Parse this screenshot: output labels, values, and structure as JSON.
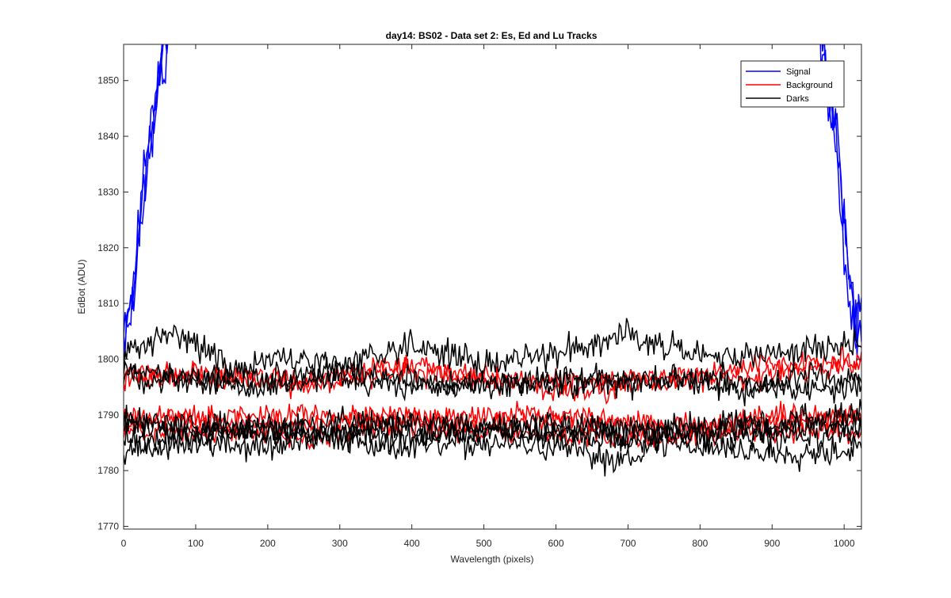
{
  "chart_data": {
    "type": "line",
    "title": "day14: BS02 - Data set 2: Es, Ed and Lu Tracks",
    "xlabel": "Wavelength (pixels)",
    "ylabel": "EdBot (ADU)",
    "xlim": [
      0,
      1024
    ],
    "ylim": [
      1769.5,
      1856.5
    ],
    "xticks": [
      0,
      100,
      200,
      300,
      400,
      500,
      600,
      700,
      800,
      900,
      1000
    ],
    "yticks": [
      1770,
      1780,
      1790,
      1800,
      1810,
      1820,
      1830,
      1840,
      1850
    ],
    "grid": false,
    "legend": {
      "location": "top-right",
      "entries": [
        {
          "label": "Signal",
          "color": "#0000ff"
        },
        {
          "label": "Background",
          "color": "#ff0000"
        },
        {
          "label": "Darks",
          "color": "#000000"
        }
      ]
    },
    "series": [
      {
        "group": "Signal",
        "color": "#0000ff",
        "noise": 2.4,
        "seed": 11,
        "points": [
          [
            0,
            1807
          ],
          [
            10,
            1811
          ],
          [
            20,
            1822
          ],
          [
            30,
            1836
          ],
          [
            40,
            1846
          ],
          [
            50,
            1852
          ],
          [
            60,
            1860
          ],
          [
            70,
            1870
          ],
          [
            955,
            1870
          ],
          [
            975,
            1852
          ],
          [
            990,
            1840
          ],
          [
            1000,
            1825
          ],
          [
            1010,
            1812
          ],
          [
            1017,
            1807
          ],
          [
            1024,
            1810
          ]
        ]
      },
      {
        "group": "Signal",
        "color": "#0000ff",
        "noise": 2.6,
        "seed": 12,
        "points": [
          [
            0,
            1803
          ],
          [
            10,
            1808
          ],
          [
            20,
            1818
          ],
          [
            30,
            1832
          ],
          [
            40,
            1842
          ],
          [
            50,
            1851
          ],
          [
            60,
            1858
          ],
          [
            70,
            1870
          ],
          [
            955,
            1870
          ],
          [
            975,
            1849
          ],
          [
            990,
            1835
          ],
          [
            1000,
            1820
          ],
          [
            1010,
            1808
          ],
          [
            1017,
            1804
          ],
          [
            1024,
            1806
          ]
        ]
      },
      {
        "group": "Signal",
        "color": "#0000ff",
        "noise": 2.8,
        "seed": 13,
        "points": [
          [
            0,
            1805
          ],
          [
            10,
            1810
          ],
          [
            20,
            1820
          ],
          [
            30,
            1834
          ],
          [
            40,
            1840
          ],
          [
            50,
            1848
          ],
          [
            60,
            1856
          ],
          [
            70,
            1870
          ],
          [
            955,
            1870
          ],
          [
            975,
            1850
          ],
          [
            990,
            1838
          ],
          [
            1000,
            1822
          ],
          [
            1010,
            1810
          ],
          [
            1017,
            1805
          ],
          [
            1024,
            1812
          ]
        ]
      },
      {
        "group": "Background",
        "color": "#ff0000",
        "noise": 1.0,
        "seed": 21,
        "points": [
          [
            0,
            1798
          ],
          [
            120,
            1797
          ],
          [
            250,
            1795
          ],
          [
            380,
            1798
          ],
          [
            500,
            1796
          ],
          [
            620,
            1794
          ],
          [
            760,
            1796
          ],
          [
            900,
            1797
          ],
          [
            1024,
            1799
          ]
        ]
      },
      {
        "group": "Background",
        "color": "#ff0000",
        "noise": 1.0,
        "seed": 22,
        "points": [
          [
            0,
            1796
          ],
          [
            120,
            1798
          ],
          [
            250,
            1796
          ],
          [
            380,
            1799
          ],
          [
            500,
            1797
          ],
          [
            620,
            1796
          ],
          [
            760,
            1797
          ],
          [
            900,
            1799
          ],
          [
            1024,
            1800
          ]
        ]
      },
      {
        "group": "Background",
        "color": "#ff0000",
        "noise": 1.0,
        "seed": 23,
        "points": [
          [
            0,
            1790
          ],
          [
            120,
            1789
          ],
          [
            250,
            1788
          ],
          [
            380,
            1790
          ],
          [
            500,
            1788
          ],
          [
            620,
            1789
          ],
          [
            760,
            1787
          ],
          [
            900,
            1789
          ],
          [
            1024,
            1790
          ]
        ]
      },
      {
        "group": "Background",
        "color": "#ff0000",
        "noise": 1.0,
        "seed": 24,
        "points": [
          [
            0,
            1787
          ],
          [
            120,
            1787
          ],
          [
            250,
            1786
          ],
          [
            380,
            1788
          ],
          [
            500,
            1787
          ],
          [
            620,
            1786
          ],
          [
            760,
            1786
          ],
          [
            900,
            1787
          ],
          [
            1024,
            1787
          ]
        ]
      },
      {
        "group": "Background",
        "color": "#ff0000",
        "noise": 1.0,
        "seed": 25,
        "points": [
          [
            0,
            1788
          ],
          [
            120,
            1790
          ],
          [
            250,
            1790
          ],
          [
            380,
            1789
          ],
          [
            500,
            1790
          ],
          [
            620,
            1790
          ],
          [
            760,
            1788
          ],
          [
            900,
            1790
          ],
          [
            1024,
            1789
          ]
        ]
      },
      {
        "group": "Darks",
        "color": "#000000",
        "noise": 1.3,
        "seed": 31,
        "points": [
          [
            0,
            1801
          ],
          [
            40,
            1803
          ],
          [
            80,
            1805
          ],
          [
            150,
            1798
          ],
          [
            200,
            1800
          ],
          [
            300,
            1799
          ],
          [
            400,
            1803
          ],
          [
            500,
            1799
          ],
          [
            600,
            1801
          ],
          [
            700,
            1805
          ],
          [
            800,
            1800
          ],
          [
            900,
            1801
          ],
          [
            1024,
            1803
          ]
        ]
      },
      {
        "group": "Darks",
        "color": "#000000",
        "noise": 1.2,
        "seed": 32,
        "points": [
          [
            0,
            1798
          ],
          [
            100,
            1797
          ],
          [
            200,
            1796
          ],
          [
            300,
            1798
          ],
          [
            420,
            1796
          ],
          [
            540,
            1795
          ],
          [
            640,
            1797
          ],
          [
            760,
            1796
          ],
          [
            860,
            1794
          ],
          [
            940,
            1797
          ],
          [
            1024,
            1796
          ]
        ]
      },
      {
        "group": "Darks",
        "color": "#000000",
        "noise": 1.2,
        "seed": 33,
        "points": [
          [
            0,
            1797
          ],
          [
            100,
            1796
          ],
          [
            200,
            1795
          ],
          [
            300,
            1796
          ],
          [
            420,
            1795
          ],
          [
            540,
            1796
          ],
          [
            640,
            1795
          ],
          [
            760,
            1797
          ],
          [
            860,
            1796
          ],
          [
            940,
            1794
          ],
          [
            1024,
            1795
          ]
        ]
      },
      {
        "group": "Darks",
        "color": "#000000",
        "noise": 1.3,
        "seed": 34,
        "points": [
          [
            0,
            1789
          ],
          [
            100,
            1788
          ],
          [
            200,
            1787
          ],
          [
            300,
            1789
          ],
          [
            400,
            1788
          ],
          [
            500,
            1787
          ],
          [
            600,
            1788
          ],
          [
            700,
            1786
          ],
          [
            800,
            1788
          ],
          [
            900,
            1789
          ],
          [
            1024,
            1790
          ]
        ]
      },
      {
        "group": "Darks",
        "color": "#000000",
        "noise": 1.3,
        "seed": 35,
        "points": [
          [
            0,
            1788
          ],
          [
            100,
            1787
          ],
          [
            200,
            1788
          ],
          [
            300,
            1787
          ],
          [
            400,
            1789
          ],
          [
            500,
            1788
          ],
          [
            600,
            1787
          ],
          [
            700,
            1788
          ],
          [
            800,
            1787
          ],
          [
            900,
            1788
          ],
          [
            1024,
            1788
          ]
        ]
      },
      {
        "group": "Darks",
        "color": "#000000",
        "noise": 1.3,
        "seed": 36,
        "points": [
          [
            0,
            1786
          ],
          [
            100,
            1786
          ],
          [
            200,
            1787
          ],
          [
            300,
            1786
          ],
          [
            400,
            1786
          ],
          [
            500,
            1787
          ],
          [
            600,
            1786
          ],
          [
            700,
            1786
          ],
          [
            800,
            1786
          ],
          [
            900,
            1786
          ],
          [
            1024,
            1787
          ]
        ]
      },
      {
        "group": "Darks",
        "color": "#000000",
        "noise": 1.3,
        "seed": 37,
        "points": [
          [
            0,
            1784
          ],
          [
            100,
            1785
          ],
          [
            200,
            1784
          ],
          [
            300,
            1786
          ],
          [
            400,
            1784
          ],
          [
            500,
            1785
          ],
          [
            600,
            1784
          ],
          [
            680,
            1782
          ],
          [
            760,
            1785
          ],
          [
            900,
            1783
          ],
          [
            1024,
            1784
          ]
        ]
      }
    ]
  }
}
